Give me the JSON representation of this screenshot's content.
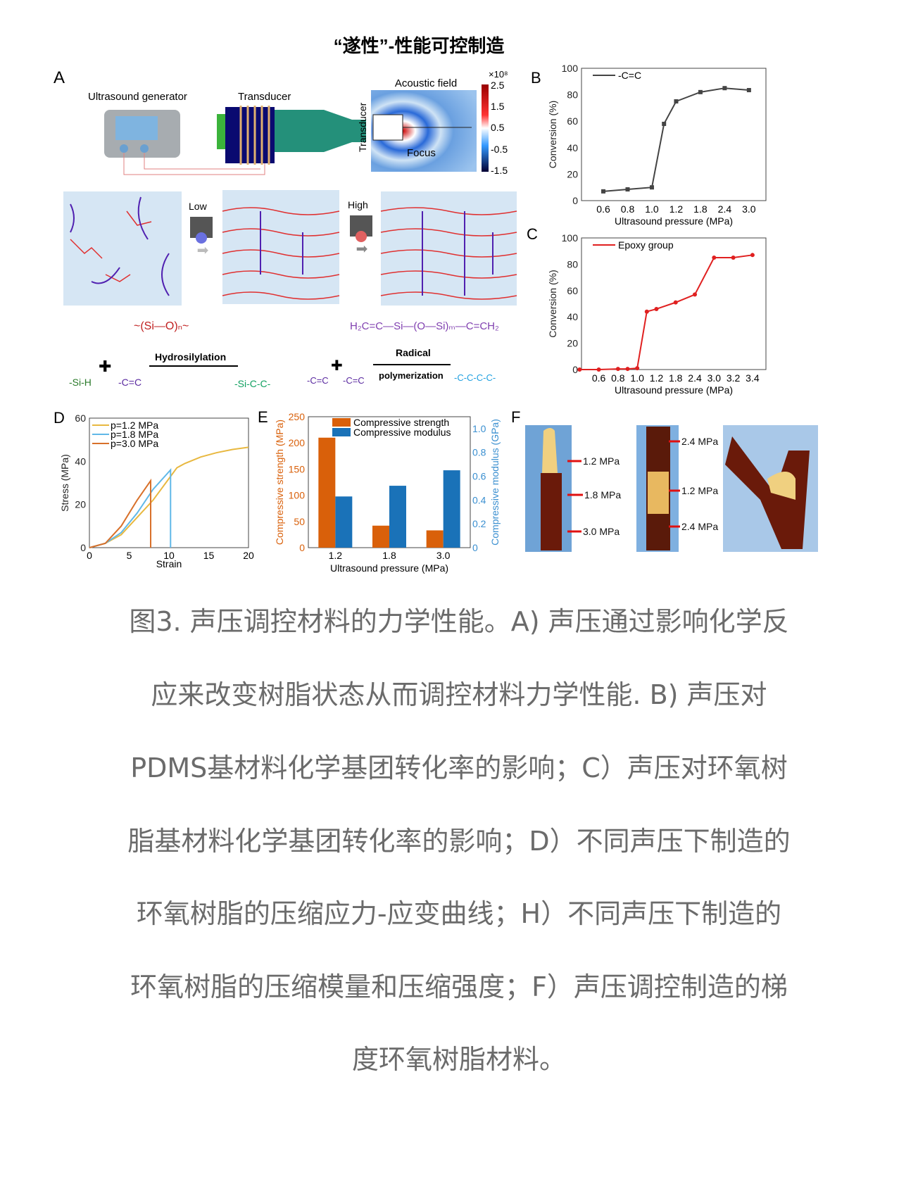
{
  "figure": {
    "title": "“遂性”-性能可控制造",
    "panel_a": {
      "letter": "A",
      "generator": "Ultrasound generator",
      "transducer": "Transducer",
      "acoustic_field": "Acoustic field",
      "transducer_vertical": "Transducer",
      "focus": "Focus",
      "colorbar_exp": "×10⁸",
      "colorbar_ticks": [
        "2.5",
        "1.5",
        "0.5",
        "-0.5",
        "-1.5"
      ],
      "low": "Low",
      "high": "High",
      "hydrosilylation": "Hydrosilylation",
      "radical": "Radical",
      "polymerization": "polymerization",
      "si_h": "-Si-H",
      "c_eq_c": "-C=C",
      "si_c_c": "-Si-C-C-",
      "c_c_c_c": "-C-C-C-C-",
      "monomer_formula": "H₂C=C—Si—(O—Si)ₘ—C=CH₂",
      "si_o_chain": "~(Si—O)ₙ~"
    },
    "panel_f": {
      "letter": "F",
      "labels_left": [
        "1.2 MPa",
        "1.8 MPa",
        "3.0 MPa"
      ],
      "labels_mid": [
        "2.4 MPa",
        "1.2 MPa",
        "2.4 MPa"
      ]
    }
  },
  "chart_data": [
    {
      "id": "B",
      "type": "line",
      "letter": "B",
      "xlabel": "Ultrasound pressure (MPa)",
      "ylabel": "Conversion (%)",
      "ylim": [
        0,
        100
      ],
      "yticks": [
        "0",
        "20",
        "40",
        "60",
        "80",
        "100"
      ],
      "categories": [
        "0.6",
        "0.8",
        "1.0",
        "1.2",
        "1.8",
        "2.4",
        "3.0"
      ],
      "series": [
        {
          "name": "-C=C",
          "color": "#444444",
          "x": [
            0,
            1,
            2,
            2.5,
            3,
            4,
            5,
            6
          ],
          "y": [
            7,
            8.5,
            10,
            58,
            75,
            82,
            85,
            83.5
          ]
        }
      ],
      "legend": "top-left"
    },
    {
      "id": "C",
      "type": "line",
      "letter": "C",
      "xlabel": "Ultrasound pressure (MPa)",
      "ylabel": "Conversion (%)",
      "ylim": [
        0,
        100
      ],
      "yticks": [
        "0",
        "20",
        "40",
        "60",
        "80",
        "100"
      ],
      "categories": [
        "0.6",
        "0.8",
        "1.0",
        "1.2",
        "1.8",
        "2.4",
        "3.0",
        "3.2",
        "3.4"
      ],
      "series": [
        {
          "name": "Epoxy group",
          "color": "#e02020",
          "x": [
            -1,
            0,
            1,
            1.5,
            2,
            2.5,
            3,
            4,
            5,
            6,
            7,
            8
          ],
          "y": [
            0,
            0,
            0.5,
            0.5,
            1,
            44,
            46,
            51,
            57,
            85,
            85,
            87
          ]
        }
      ],
      "legend": "top-left"
    },
    {
      "id": "D",
      "type": "line",
      "letter": "D",
      "xlabel": "Strain",
      "ylabel": "Stress (MPa)",
      "xlim": [
        0,
        20
      ],
      "ylim": [
        0,
        60
      ],
      "xticks": [
        "0",
        "5",
        "10",
        "15",
        "20"
      ],
      "yticks": [
        "0",
        "20",
        "40",
        "60"
      ],
      "series": [
        {
          "name": "p=1.2 MPa",
          "color": "#e8b840",
          "x": [
            0,
            2,
            4,
            6,
            8,
            10,
            11,
            12,
            14,
            16,
            18,
            20
          ],
          "y": [
            0,
            2,
            6,
            14,
            22,
            32,
            37,
            39,
            42,
            44,
            45.5,
            46.5
          ]
        },
        {
          "name": "p=1.8 MPa",
          "color": "#60b8e8",
          "x": [
            0,
            2,
            4,
            6,
            8,
            10.2,
            10.2
          ],
          "y": [
            0,
            2,
            7,
            16,
            27,
            36,
            0
          ]
        },
        {
          "name": "p=3.0 MPa",
          "color": "#d8702a",
          "x": [
            0,
            2,
            4,
            6,
            7.7,
            7.7
          ],
          "y": [
            0,
            2,
            10,
            22,
            31,
            0
          ]
        }
      ],
      "legend": "top-left"
    },
    {
      "id": "E",
      "type": "bar",
      "letter": "E",
      "xlabel": "Ultrasound pressure (MPa)",
      "ylabel": "Compressive strength (MPa)",
      "y2label": "Compressive modulus (GPa)",
      "ylim": [
        0,
        250
      ],
      "y2lim": [
        0,
        1.1
      ],
      "yticks": [
        "0",
        "50",
        "100",
        "150",
        "200",
        "250"
      ],
      "y2ticks": [
        "0",
        "0.2",
        "0.4",
        "0.6",
        "0.8",
        "1.0"
      ],
      "categories": [
        "1.2",
        "1.8",
        "3.0"
      ],
      "series": [
        {
          "name": "Compressive strength",
          "color": "#d9600a",
          "values": [
            210,
            42,
            33
          ]
        },
        {
          "name": "Compressive modulus",
          "color": "#1a72b8",
          "values": [
            0.43,
            0.52,
            0.65
          ]
        }
      ],
      "legend": "top-right"
    }
  ],
  "caption": [
    "图3. 声压调控材料的力学性能。A) 声压通过影响化学反",
    "应来改变树脂状态从而调控材料力学性能. B) 声压对",
    "PDMS基材料化学基团转化率的影响；C）声压对环氧树",
    "脂基材料化学基团转化率的影响；D）不同声压下制造的",
    "环氧树脂的压缩应力-应变曲线；H）不同声压下制造的",
    "环氧树脂的压缩模量和压缩强度；F）声压调控制造的梯",
    "度环氧树脂材料。"
  ]
}
